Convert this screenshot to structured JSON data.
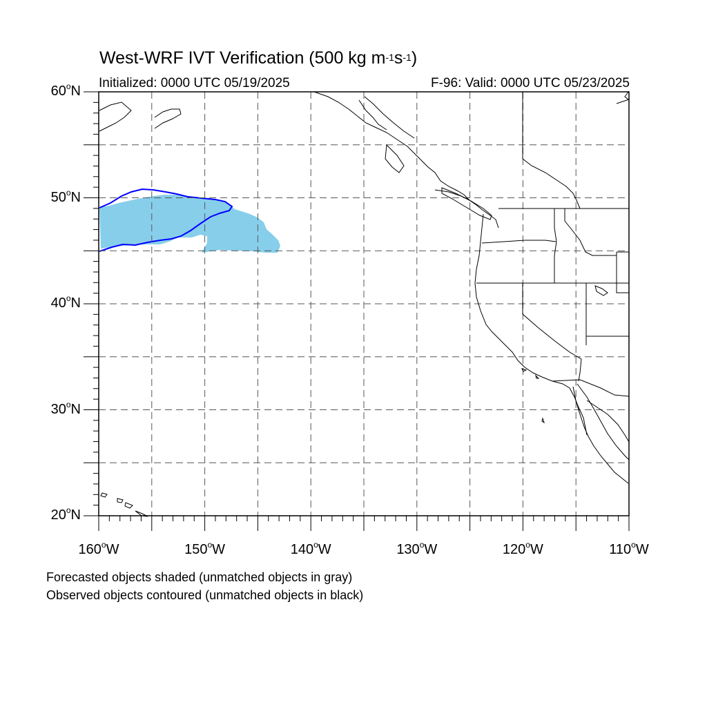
{
  "title": {
    "main": "West-WRF IVT Verification (500 kg m",
    "exp1": "-1",
    "mid": "s",
    "exp2": "-1",
    "end": ")"
  },
  "subtitle": {
    "initialized": "Initialized: 0000 UTC 05/19/2025",
    "valid": "F-96: Valid: 0000 UTC 05/23/2025"
  },
  "lat_labels": [
    {
      "value": "60",
      "suffix": "N"
    },
    {
      "value": "50",
      "suffix": "N"
    },
    {
      "value": "40",
      "suffix": "N"
    },
    {
      "value": "30",
      "suffix": "N"
    },
    {
      "value": "20",
      "suffix": "N"
    }
  ],
  "lon_labels": [
    {
      "value": "160",
      "suffix": "W"
    },
    {
      "value": "150",
      "suffix": "W"
    },
    {
      "value": "140",
      "suffix": "W"
    },
    {
      "value": "130",
      "suffix": "W"
    },
    {
      "value": "120",
      "suffix": "W"
    },
    {
      "value": "110",
      "suffix": "W"
    }
  ],
  "notes": {
    "line1": "Forecasted objects shaded (unmatched objects in gray)",
    "line2": "Observed objects contoured (unmatched objects in black)"
  },
  "colors": {
    "forecast_fill": "#87ceeb",
    "observed_contour": "#0000ff",
    "coastline": "#000000",
    "grid": "#555555"
  },
  "map_extent": {
    "lon_range": [
      -160,
      -110
    ],
    "lat_range": [
      20,
      60
    ]
  }
}
